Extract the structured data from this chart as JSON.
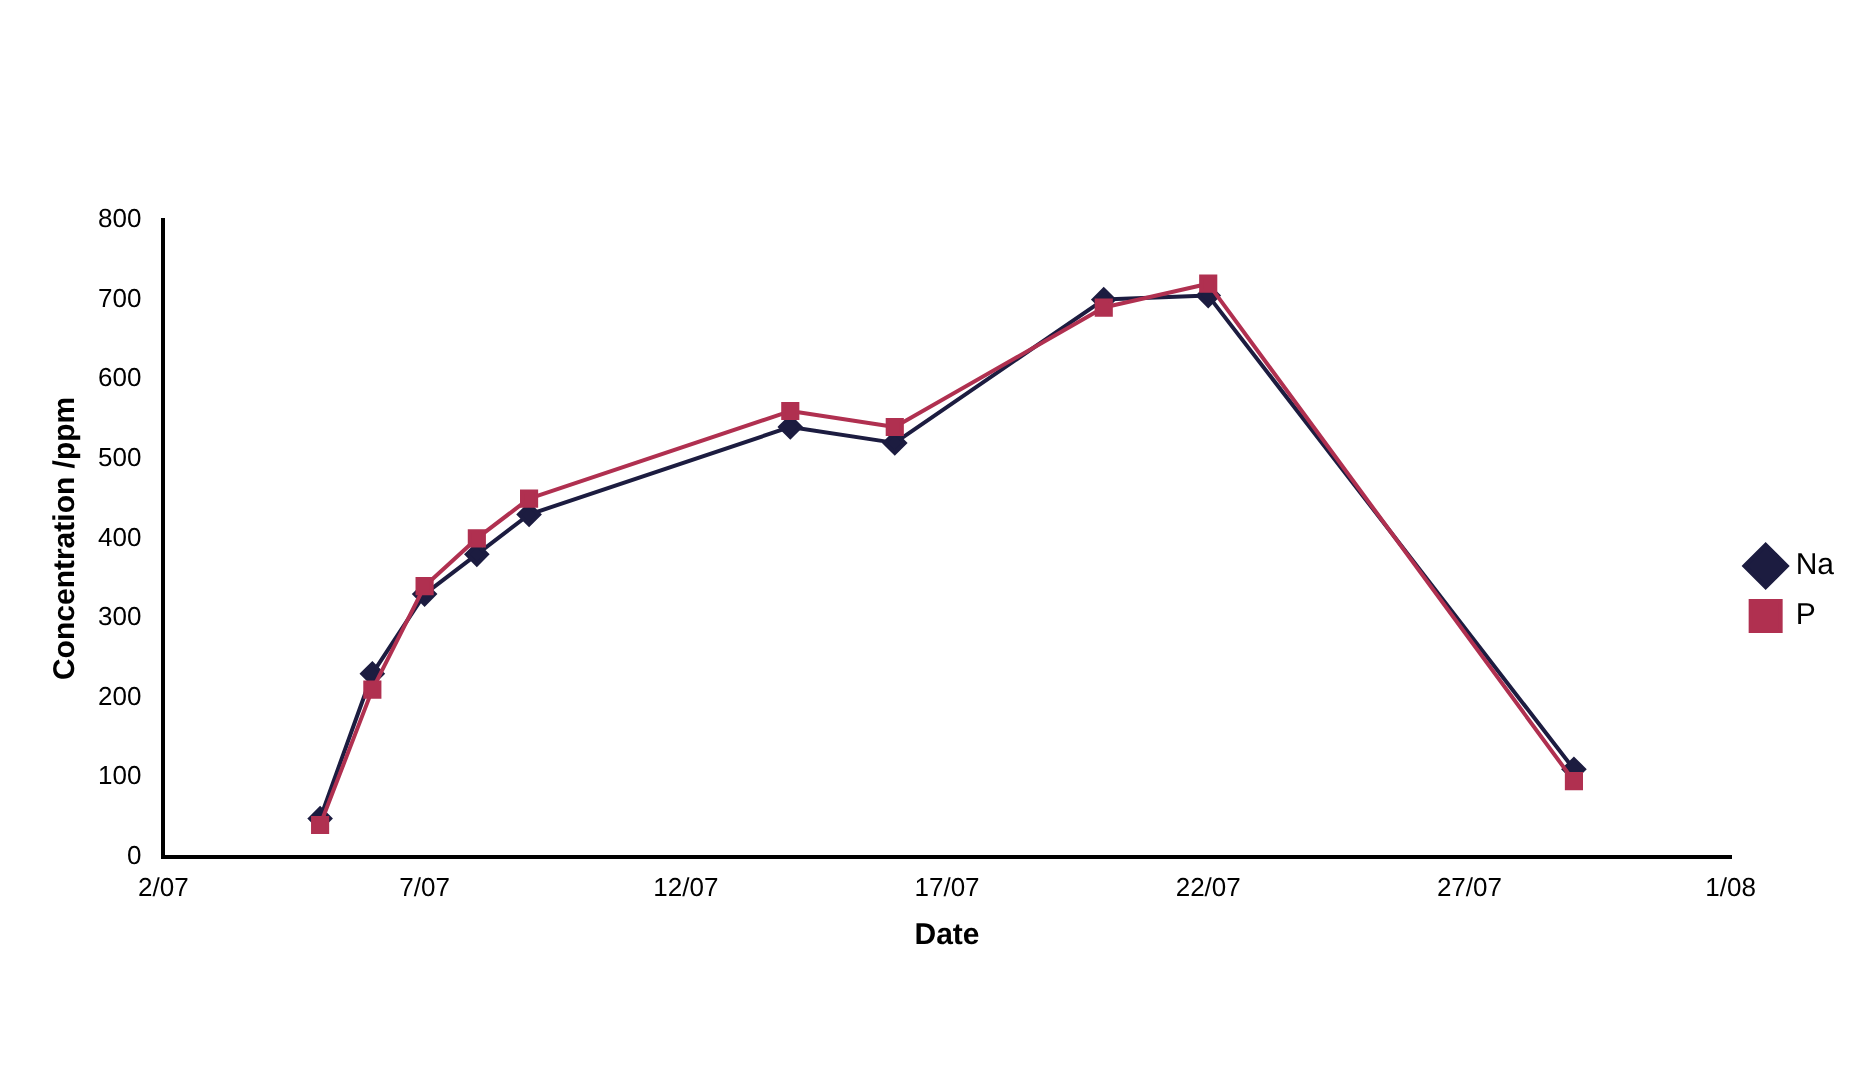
{
  "chart_data": {
    "type": "line",
    "xlabel": "Date",
    "ylabel": "Concentration /ppm",
    "x": [
      "--07-05",
      "--07-06",
      "--07-07",
      "--07-08",
      "--07-09",
      "--07-14",
      "--07-16",
      "--07-20",
      "--07-22",
      "--07-29"
    ],
    "series": [
      {
        "name": "Na",
        "color": "#1c1c40",
        "marker": "diamond",
        "values": [
          48,
          230,
          330,
          380,
          430,
          540,
          520,
          700,
          705,
          110
        ]
      },
      {
        "name": "P",
        "color": "#b03050",
        "marker": "square",
        "values": [
          40,
          210,
          340,
          400,
          450,
          560,
          540,
          690,
          720,
          95
        ]
      }
    ],
    "xlim": [
      "--07-02",
      "--08-01"
    ],
    "xticks": [
      {
        "value": "--07-02",
        "label": "2/07"
      },
      {
        "value": "--07-07",
        "label": "7/07"
      },
      {
        "value": "--07-12",
        "label": "12/07"
      },
      {
        "value": "--07-17",
        "label": "17/07"
      },
      {
        "value": "--07-22",
        "label": "22/07"
      },
      {
        "value": "--07-27",
        "label": "27/07"
      },
      {
        "value": "--08-01",
        "label": "1/08"
      }
    ],
    "ylim": [
      0,
      800
    ],
    "yticks": [
      0,
      100,
      200,
      300,
      400,
      500,
      600,
      700,
      800
    ],
    "grid": false,
    "legend": "right",
    "line_style": "solid"
  }
}
